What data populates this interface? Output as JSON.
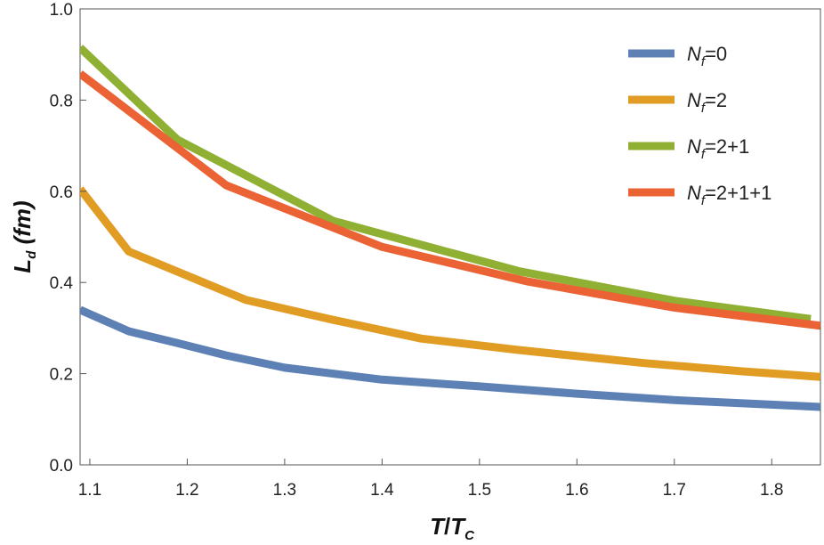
{
  "chart_data": {
    "type": "line",
    "title": "",
    "xlabel": {
      "main": "T",
      "sep": "/",
      "sub_base": "T",
      "sub": "C"
    },
    "ylabel": {
      "base": "L",
      "sub": "d",
      "rest": " (fm)"
    },
    "xlim": [
      1.09,
      1.85
    ],
    "ylim": [
      0.0,
      1.0
    ],
    "xticks": [
      1.1,
      1.2,
      1.3,
      1.4,
      1.5,
      1.6,
      1.7,
      1.8
    ],
    "xtick_labels": [
      "1.1",
      "1.2",
      "1.3",
      "1.4",
      "1.5",
      "1.6",
      "1.7",
      "1.8"
    ],
    "yticks": [
      0.0,
      0.2,
      0.4,
      0.6,
      0.8,
      1.0
    ],
    "ytick_labels": [
      "0.0",
      "0.2",
      "0.4",
      "0.6",
      "0.8",
      "1.0"
    ],
    "grid": false,
    "legend_position": "top-right",
    "series": [
      {
        "name": "N_f=0",
        "label_base": "N",
        "label_sub": "f",
        "label_rest": "=0",
        "color": "#5E81B5",
        "x": [
          1.09,
          1.14,
          1.19,
          1.24,
          1.3,
          1.4,
          1.5,
          1.6,
          1.7,
          1.8,
          1.85
        ],
        "y": [
          0.34,
          0.293,
          0.267,
          0.24,
          0.213,
          0.187,
          0.172,
          0.156,
          0.142,
          0.132,
          0.127
        ]
      },
      {
        "name": "N_f=2",
        "label_base": "N",
        "label_sub": "f",
        "label_rest": "=2",
        "color": "#E19C24",
        "x": [
          1.09,
          1.14,
          1.26,
          1.35,
          1.44,
          1.54,
          1.67,
          1.77,
          1.85
        ],
        "y": [
          0.605,
          0.468,
          0.362,
          0.318,
          0.277,
          0.252,
          0.223,
          0.205,
          0.193
        ]
      },
      {
        "name": "N_f=2+1",
        "label_base": "N",
        "label_sub": "f",
        "label_rest": "=2+1",
        "color": "#8FB032",
        "x": [
          1.09,
          1.19,
          1.35,
          1.54,
          1.7,
          1.84
        ],
        "y": [
          0.915,
          0.713,
          0.535,
          0.425,
          0.36,
          0.32
        ]
      },
      {
        "name": "N_f=2+1+1",
        "label_base": "N",
        "label_sub": "f",
        "label_rest": "=2+1+1",
        "color": "#EB6235",
        "x": [
          1.09,
          1.24,
          1.4,
          1.55,
          1.7,
          1.85
        ],
        "y": [
          0.858,
          0.613,
          0.478,
          0.402,
          0.345,
          0.305
        ]
      }
    ]
  }
}
